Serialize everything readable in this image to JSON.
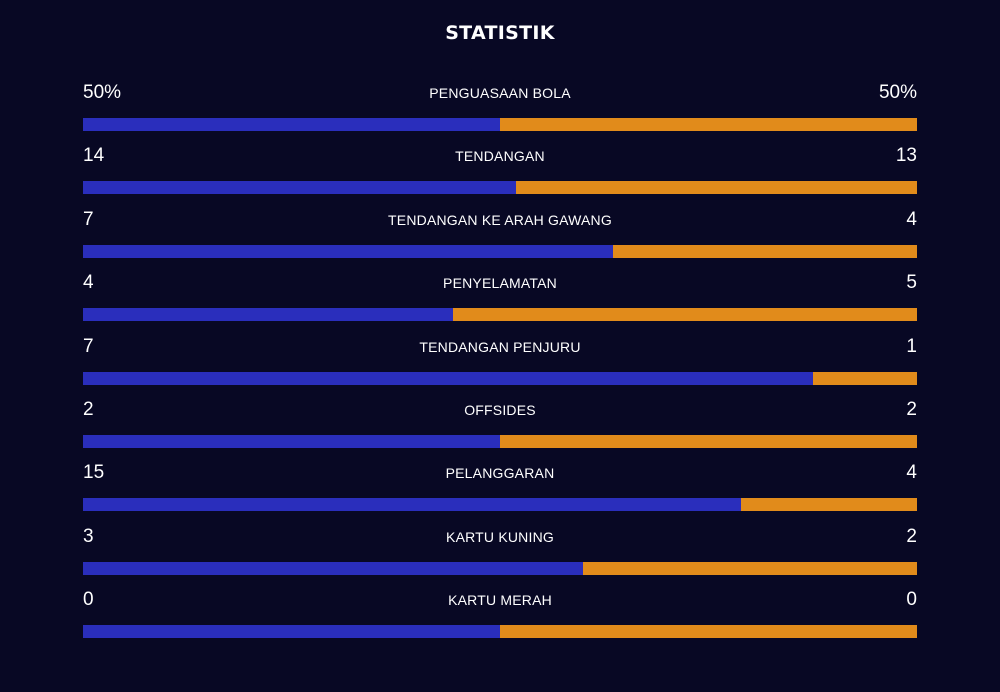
{
  "title": "STATISTIK",
  "colors": {
    "background": "#080824",
    "home": "#2a2ebc",
    "away": "#e18b1b",
    "text": "#ffffff"
  },
  "stats": [
    {
      "label": "PENGUASAAN BOLA",
      "home": "50%",
      "away": "50%",
      "home_share": 0.5
    },
    {
      "label": "TENDANGAN",
      "home": "14",
      "away": "13",
      "home_share": 0.519
    },
    {
      "label": "TENDANGAN KE ARAH GAWANG",
      "home": "7",
      "away": "4",
      "home_share": 0.636
    },
    {
      "label": "PENYELAMATAN",
      "home": "4",
      "away": "5",
      "home_share": 0.444
    },
    {
      "label": "TENDANGAN PENJURU",
      "home": "7",
      "away": "1",
      "home_share": 0.875
    },
    {
      "label": "OFFSIDES",
      "home": "2",
      "away": "2",
      "home_share": 0.5
    },
    {
      "label": "PELANGGARAN",
      "home": "15",
      "away": "4",
      "home_share": 0.789
    },
    {
      "label": "KARTU KUNING",
      "home": "3",
      "away": "2",
      "home_share": 0.6
    },
    {
      "label": "KARTU MERAH",
      "home": "0",
      "away": "0",
      "home_share": 0.5
    }
  ]
}
